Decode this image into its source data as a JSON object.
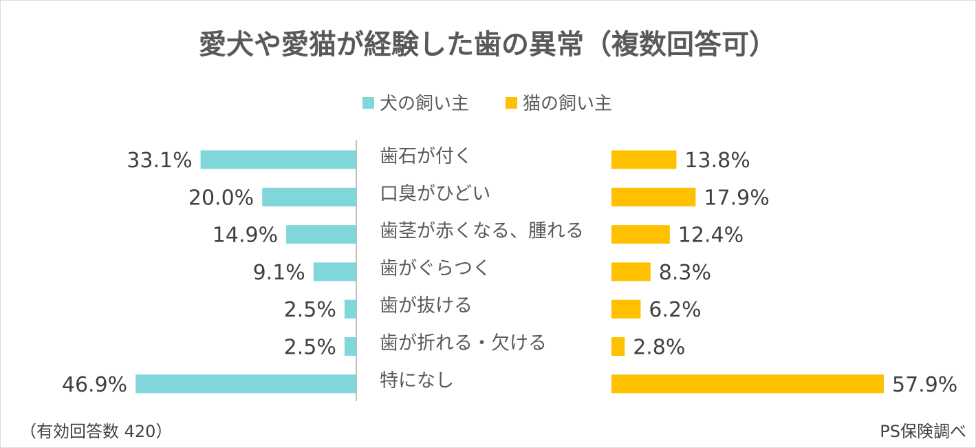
{
  "chart_data": {
    "type": "bar",
    "orientation": "horizontal-butterfly",
    "title": "愛犬や愛猫が経験した歯の異常（複数回答可）",
    "categories": [
      "歯石が付く",
      "口臭がひどい",
      "歯茎が赤くなる、腫れる",
      "歯がぐらつく",
      "歯が抜ける",
      "歯が折れる・欠ける",
      "特になし"
    ],
    "series": [
      {
        "name": "犬の飼い主",
        "color": "#7fd6db",
        "values": [
          33.1,
          20.0,
          14.9,
          9.1,
          2.5,
          2.5,
          46.9
        ],
        "labels": [
          "33.1%",
          "20.0%",
          "14.9%",
          "9.1%",
          "2.5%",
          "2.5%",
          "46.9%"
        ]
      },
      {
        "name": "猫の飼い主",
        "color": "#ffc000",
        "values": [
          13.8,
          17.9,
          12.4,
          8.3,
          6.2,
          2.8,
          57.9
        ],
        "labels": [
          "13.8%",
          "17.9%",
          "12.4%",
          "8.3%",
          "6.2%",
          "2.8%",
          "57.9%"
        ]
      }
    ],
    "unit": "%",
    "legend_position": "top-center",
    "footnote_left": "（有効回答数 420）",
    "footnote_right": "PS保険調べ"
  }
}
